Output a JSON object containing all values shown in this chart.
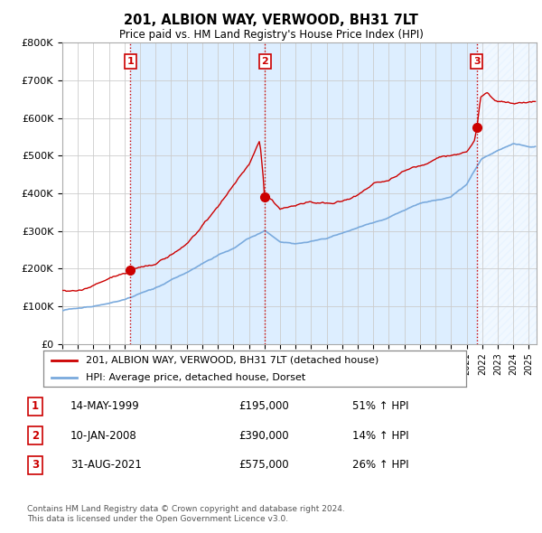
{
  "title": "201, ALBION WAY, VERWOOD, BH31 7LT",
  "subtitle": "Price paid vs. HM Land Registry's House Price Index (HPI)",
  "ylim": [
    0,
    800000
  ],
  "yticks": [
    0,
    100000,
    200000,
    300000,
    400000,
    500000,
    600000,
    700000,
    800000
  ],
  "ytick_labels": [
    "£0",
    "£100K",
    "£200K",
    "£300K",
    "£400K",
    "£500K",
    "£600K",
    "£700K",
    "£800K"
  ],
  "xlim_start": 1995.0,
  "xlim_end": 2025.5,
  "sale_points": [
    {
      "year": 1999.37,
      "price": 195000,
      "label": "1"
    },
    {
      "year": 2008.03,
      "price": 390000,
      "label": "2"
    },
    {
      "year": 2021.66,
      "price": 575000,
      "label": "3"
    }
  ],
  "vline_color": "#cc0000",
  "property_line_color": "#cc0000",
  "hpi_line_color": "#7aaadd",
  "grid_color": "#cccccc",
  "background_color": "#ffffff",
  "shade_color": "#ddeeff",
  "legend_label_property": "201, ALBION WAY, VERWOOD, BH31 7LT (detached house)",
  "legend_label_hpi": "HPI: Average price, detached house, Dorset",
  "footnote": "Contains HM Land Registry data © Crown copyright and database right 2024.\nThis data is licensed under the Open Government Licence v3.0.",
  "table_rows": [
    {
      "num": "1",
      "date": "14-MAY-1999",
      "price": "£195,000",
      "pct": "51% ↑ HPI"
    },
    {
      "num": "2",
      "date": "10-JAN-2008",
      "price": "£390,000",
      "pct": "14% ↑ HPI"
    },
    {
      "num": "3",
      "date": "31-AUG-2021",
      "price": "£575,000",
      "pct": "26% ↑ HPI"
    }
  ]
}
